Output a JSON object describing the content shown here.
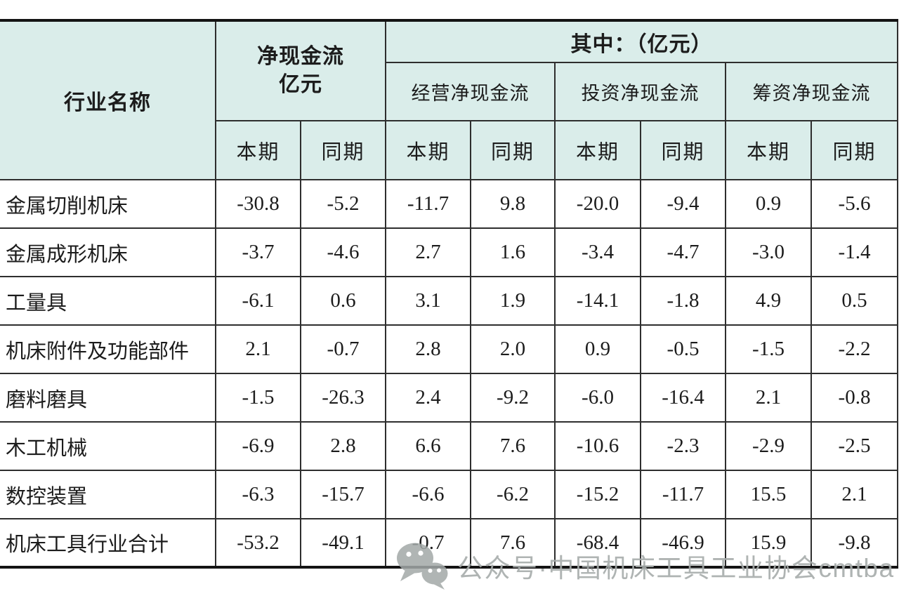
{
  "table": {
    "header": {
      "industry_col": "行业名称",
      "net_cash_flow_line1": "净现金流",
      "net_cash_flow_line2": "亿元",
      "among_which": "其中：（亿元）",
      "groups": [
        "经营净现金流",
        "投资净现金流",
        "筹资净现金流"
      ],
      "period_current": "本期",
      "period_prior": "同期"
    },
    "rows": [
      {
        "name": "金属切削机床",
        "values": [
          "-30.8",
          "-5.2",
          "-11.7",
          "9.8",
          "-20.0",
          "-9.4",
          "0.9",
          "-5.6"
        ]
      },
      {
        "name": "金属成形机床",
        "values": [
          "-3.7",
          "-4.6",
          "2.7",
          "1.6",
          "-3.4",
          "-4.7",
          "-3.0",
          "-1.4"
        ]
      },
      {
        "name": "工量具",
        "values": [
          "-6.1",
          "0.6",
          "3.1",
          "1.9",
          "-14.1",
          "-1.8",
          "4.9",
          "0.5"
        ]
      },
      {
        "name": "机床附件及功能部件",
        "values": [
          "2.1",
          "-0.7",
          "2.8",
          "2.0",
          "0.9",
          "-0.5",
          "-1.5",
          "-2.2"
        ]
      },
      {
        "name": "磨料磨具",
        "values": [
          "-1.5",
          "-26.3",
          "2.4",
          "-9.2",
          "-6.0",
          "-16.4",
          "2.1",
          "-0.8"
        ]
      },
      {
        "name": "木工机械",
        "values": [
          "-6.9",
          "2.8",
          "6.6",
          "7.6",
          "-10.6",
          "-2.3",
          "-2.9",
          "-2.5"
        ]
      },
      {
        "name": "数控装置",
        "values": [
          "-6.3",
          "-15.7",
          "-6.6",
          "-6.2",
          "-15.2",
          "-11.7",
          "15.5",
          "2.1"
        ]
      },
      {
        "name": "机床工具行业合计",
        "values": [
          "-53.2",
          "-49.1",
          "-0.7",
          "7.6",
          "-68.4",
          "-46.9",
          "15.9",
          "-9.8"
        ]
      }
    ]
  },
  "watermark": {
    "icon": "wechat-icon",
    "text": "公众号·中国机床工具工业协会cmtba"
  },
  "colors": {
    "header_bg": "#daedea",
    "border": "#2e2e2e",
    "text": "#1c1c1c",
    "watermark": "#a7acab"
  },
  "chart_data": {
    "type": "table",
    "title": "",
    "unit": "亿元",
    "column_groups": [
      "净现金流 亿元",
      "其中：（亿元） 经营净现金流",
      "其中：（亿元） 投资净现金流",
      "其中：（亿元） 筹资净现金流"
    ],
    "columns": [
      "行业名称",
      "净现金流-本期",
      "净现金流-同期",
      "经营净现金流-本期",
      "经营净现金流-同期",
      "投资净现金流-本期",
      "投资净现金流-同期",
      "筹资净现金流-本期",
      "筹资净现金流-同期"
    ],
    "rows": [
      [
        "金属切削机床",
        -30.8,
        -5.2,
        -11.7,
        9.8,
        -20.0,
        -9.4,
        0.9,
        -5.6
      ],
      [
        "金属成形机床",
        -3.7,
        -4.6,
        2.7,
        1.6,
        -3.4,
        -4.7,
        -3.0,
        -1.4
      ],
      [
        "工量具",
        -6.1,
        0.6,
        3.1,
        1.9,
        -14.1,
        -1.8,
        4.9,
        0.5
      ],
      [
        "机床附件及功能部件",
        2.1,
        -0.7,
        2.8,
        2.0,
        0.9,
        -0.5,
        -1.5,
        -2.2
      ],
      [
        "磨料磨具",
        -1.5,
        -26.3,
        2.4,
        -9.2,
        -6.0,
        -16.4,
        2.1,
        -0.8
      ],
      [
        "木工机械",
        -6.9,
        2.8,
        6.6,
        7.6,
        -10.6,
        -2.3,
        -2.9,
        -2.5
      ],
      [
        "数控装置",
        -6.3,
        -15.7,
        -6.6,
        -6.2,
        -15.2,
        -11.7,
        15.5,
        2.1
      ],
      [
        "机床工具行业合计",
        -53.2,
        -49.1,
        -0.7,
        7.6,
        -68.4,
        -46.9,
        15.9,
        -9.8
      ]
    ]
  }
}
